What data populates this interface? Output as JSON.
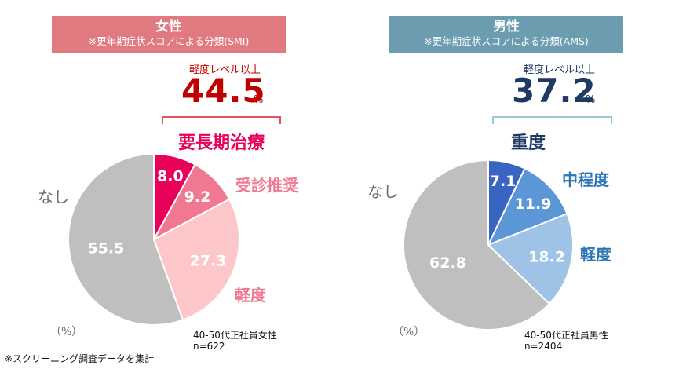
{
  "chart_data": [
    {
      "type": "pie",
      "title": "女性",
      "subtitle": "※更年期症状スコアによる分類(SMI)",
      "summary": {
        "label": "軽度レベル以上",
        "value": "44.5",
        "unit": "%"
      },
      "group_label": "要長期治療",
      "unit_note": "（%）",
      "sample": [
        "40-50代正社員女性",
        "n=622"
      ],
      "slices": [
        {
          "name": "要長期治療",
          "value": 8.0,
          "display": "8.0",
          "color": "#e8005a"
        },
        {
          "name": "受診推奨",
          "value": 9.2,
          "display": "9.2",
          "color": "#f07891"
        },
        {
          "name": "軽度",
          "value": 27.3,
          "display": "27.3",
          "color": "#fdc7c9"
        },
        {
          "name": "なし",
          "value": 55.5,
          "display": "55.5",
          "color": "#bfbfbf"
        }
      ],
      "category_labels": [
        {
          "text": "受診推奨",
          "color": "#f07891"
        },
        {
          "text": "軽度",
          "color": "#f07891"
        },
        {
          "text": "なし",
          "color": "#6e6e6e"
        }
      ]
    },
    {
      "type": "pie",
      "title": "男性",
      "subtitle": "※更年期症状スコアによる分類(AMS)",
      "summary": {
        "label": "軽度レベル以上",
        "value": "37.2",
        "unit": "%"
      },
      "group_label": "重度",
      "unit_note": "（%）",
      "sample": [
        "40-50代正社員男性",
        "n=2404"
      ],
      "slices": [
        {
          "name": "重度",
          "value": 7.1,
          "display": "7.1",
          "color": "#3a64c2"
        },
        {
          "name": "中程度",
          "value": 11.9,
          "display": "11.9",
          "color": "#5b96d6"
        },
        {
          "name": "軽度",
          "value": 18.2,
          "display": "18.2",
          "color": "#9fc3e7"
        },
        {
          "name": "なし",
          "value": 62.8,
          "display": "62.8",
          "color": "#bfbfbf"
        }
      ],
      "category_labels": [
        {
          "text": "中程度",
          "color": "#2e75b6"
        },
        {
          "text": "軽度",
          "color": "#2e75b6"
        },
        {
          "text": "なし",
          "color": "#6e6e6e"
        }
      ]
    }
  ],
  "colors": {
    "female_header": "#e07a80",
    "male_header": "#6b9cb0",
    "female_accent": "#c00000",
    "male_accent": "#1f3864",
    "female_bracket": "#e0565f",
    "male_bracket": "#9dc8d8",
    "female_group": "#e8005a",
    "male_group": "#1f3864"
  },
  "footnote": "※スクリーニング調査データを集計"
}
